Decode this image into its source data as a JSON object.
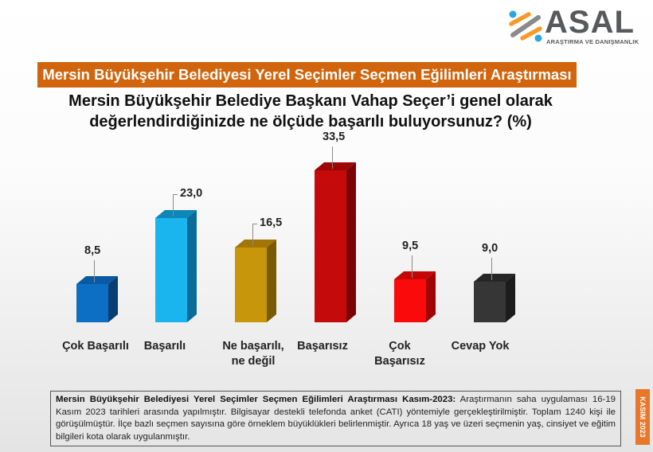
{
  "logo": {
    "name": "ASAL",
    "subtitle": "ARAŞTIRMA VE DANIŞMANLIK",
    "colors": {
      "orange": "#f39a2b",
      "blue": "#2aa7e0",
      "gray": "#58595b"
    }
  },
  "banner": {
    "title": "Mersin Büyükşehir Belediyesi Yerel Seçimler Seçmen Eğilimleri Araştırması",
    "color": "#d0650e"
  },
  "question": {
    "line1": "Mersin Büyükşehir Belediye Başkanı Vahap Seçer’i genel olarak",
    "line2": "değerlendirdiğinizde ne ölçüde başarılı buluyorsunuz? (%)"
  },
  "chart_data": {
    "type": "bar",
    "title": "Mersin Büyükşehir Belediye Başkanı Vahap Seçer’i genel olarak değerlendirdiğinizde ne ölçüde başarılı buluyorsunuz? (%)",
    "xlabel": "",
    "ylabel": "%",
    "ylim": [
      0,
      35
    ],
    "grid": false,
    "legend": "none",
    "categories": [
      "Çok Başarılı",
      "Başarılı",
      "Ne başarılı, ne değil",
      "Başarısız",
      "Çok Başarısız",
      "Cevap Yok"
    ],
    "values": [
      8.5,
      23.0,
      16.5,
      33.5,
      9.5,
      9.0
    ],
    "value_labels": [
      "8,5",
      "23,0",
      "16,5",
      "33,5",
      "9,5",
      "9,0"
    ],
    "category_lines": [
      [
        "Çok Başarılı"
      ],
      [
        "Başarılı"
      ],
      [
        "Ne başarılı,",
        "ne değil"
      ],
      [
        "Başarısız"
      ],
      [
        "Çok",
        "Başarısız"
      ],
      [
        "Cevap Yok"
      ]
    ],
    "colors": [
      {
        "front": "#0c6fc4",
        "top": "#0a5aa3",
        "side": "#073f73"
      },
      {
        "front": "#1ab4ee",
        "top": "#0f86b8",
        "side": "#0b6d97"
      },
      {
        "front": "#c8960a",
        "top": "#a17506",
        "side": "#7a5a04"
      },
      {
        "front": "#c40a0a",
        "top": "#9e0606",
        "side": "#7a0404"
      },
      {
        "front": "#fa0a0a",
        "top": "#c50606",
        "side": "#a00404"
      },
      {
        "front": "#363636",
        "top": "#262626",
        "side": "#1c1c1c"
      }
    ]
  },
  "note": {
    "bold": "Mersin Büyükşehir Belediyesi Yerel Seçimler Seçmen Eğilimleri Araştırması Kasım-2023:",
    "text": " Araştırmanın saha uygulaması 16-19 Kasım 2023 tarihleri arasında yapılmıştır. Bilgisayar destekli telefonda anket (CATI) yöntemiyle gerçekleştirilmiştir. Toplam 1240 kişi ile görüşülmüştür. İlçe bazlı seçmen sayısına göre örneklem büyüklükleri belirlenmiştir. Ayrıca 18 yaş ve üzeri seçmenin yaş, cinsiyet ve eğitim bilgileri kota olarak uygulanmıştır."
  },
  "side_tab": {
    "label": "KASIM 2023",
    "color": "#e8772a"
  }
}
